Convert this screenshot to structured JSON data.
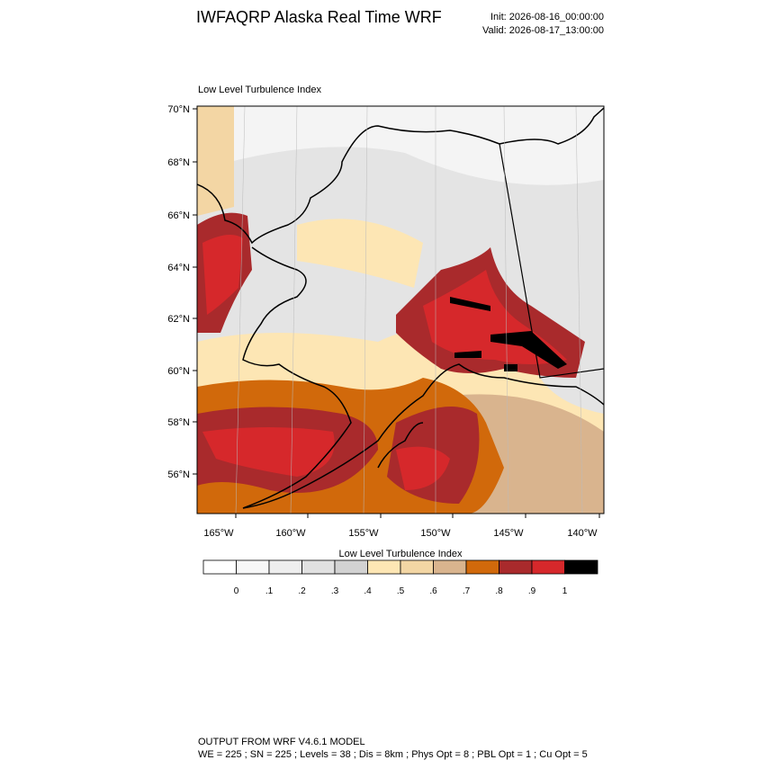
{
  "header": {
    "title": "IWFAQRP Alaska Real Time WRF",
    "init": "Init: 2026-08-16_00:00:00",
    "valid": "Valid: 2026-08-17_13:00:00"
  },
  "map": {
    "title": "Low Level Turbulence Index",
    "lat_labels": [
      "70°N",
      "68°N",
      "66°N",
      "64°N",
      "62°N",
      "60°N",
      "58°N",
      "56°N"
    ],
    "lon_labels": [
      "165°W",
      "160°W",
      "155°W",
      "150°W",
      "145°W",
      "140°W"
    ]
  },
  "colorbar": {
    "title": "Low Level Turbulence Index",
    "colors": [
      "#ffffff",
      "#f7f7f7",
      "#eeeeee",
      "#e1e1e1",
      "#d2d2d2",
      "#fde6b4",
      "#f3d6a4",
      "#d9b48e",
      "#d1690b",
      "#a92a2c",
      "#d6282b",
      "#000000"
    ],
    "labels": [
      "0",
      ".1",
      ".2",
      ".3",
      ".4",
      ".5",
      ".6",
      ".7",
      ".8",
      ".9",
      "1"
    ]
  },
  "footer": {
    "line1": "OUTPUT FROM WRF V4.6.1 MODEL",
    "line2": "WE = 225 ; SN = 225 ; Levels = 38 ; Dis = 8km ; Phys Opt = 8 ; PBL Opt = 1 ; Cu Opt = 5"
  }
}
